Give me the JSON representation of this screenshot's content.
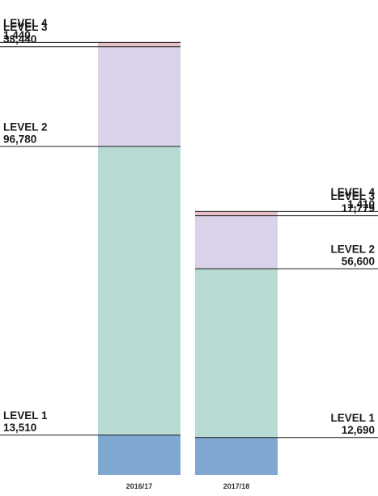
{
  "chart_data": {
    "type": "bar",
    "stacked": true,
    "categories": [
      "2016/17",
      "2017/18"
    ],
    "series": [
      {
        "name": "LEVEL 1",
        "values": [
          13510,
          12690
        ],
        "color": "#7fa8d1"
      },
      {
        "name": "LEVEL 2",
        "values": [
          96780,
          56600
        ],
        "color": "#b7dbd3"
      },
      {
        "name": "LEVEL 3",
        "values": [
          33440,
          17779
        ],
        "color": "#d9d2e8"
      },
      {
        "name": "LEVEL 4",
        "values": [
          1440,
          1410
        ],
        "color": "#e7bfc6"
      }
    ],
    "value_labels": [
      [
        "13,510",
        "12,690"
      ],
      [
        "96,780",
        "56,600"
      ],
      [
        "33,440",
        "17,779"
      ],
      [
        "1,440",
        "1,410"
      ]
    ],
    "label_placement": [
      "left",
      "right"
    ],
    "grid": false,
    "legend": "none"
  }
}
